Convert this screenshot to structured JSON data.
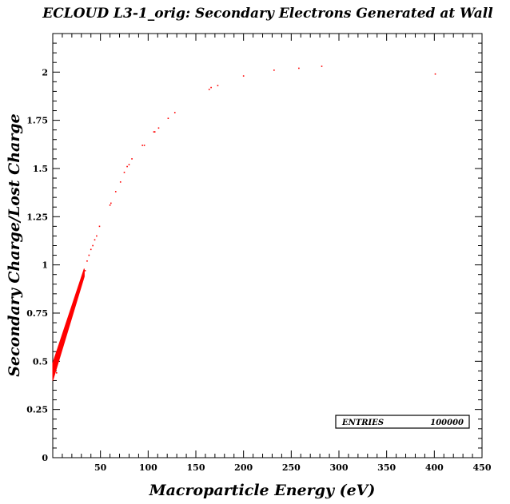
{
  "chart_data": {
    "type": "scatter",
    "title": "ECLOUD L3-1_orig: Secondary Electrons Generated at Wall",
    "xlabel": "Macroparticle Energy (eV)",
    "ylabel": "Secondary Charge/Lost Charge",
    "xlim": [
      0,
      450
    ],
    "ylim": [
      0,
      2.2
    ],
    "x_ticks": [
      50,
      100,
      150,
      200,
      250,
      300,
      350,
      400,
      450
    ],
    "x_tick_labels": [
      "50",
      "100",
      "150",
      "200",
      "250",
      "300",
      "350",
      "400",
      "450"
    ],
    "y_ticks": [
      0,
      0.25,
      0.5,
      0.75,
      1,
      1.25,
      1.5,
      1.75,
      2
    ],
    "y_tick_labels": [
      "0",
      "0.25",
      "0.5",
      "0.75",
      "1",
      "1.25",
      "1.5",
      "1.75",
      "2"
    ],
    "grid": false,
    "marker_color": "#ff0000",
    "dense_band": {
      "x_range": [
        0,
        33
      ],
      "y_start": [
        0.4,
        0.49
      ],
      "y_end": [
        0.94,
        0.98
      ]
    },
    "series": [
      {
        "points": [
          [
            1,
            0.44
          ],
          [
            4,
            0.44
          ],
          [
            34,
            0.97
          ],
          [
            36,
            1.02
          ],
          [
            38,
            1.05
          ],
          [
            40,
            1.08
          ],
          [
            42,
            1.1
          ],
          [
            44,
            1.13
          ],
          [
            46,
            1.15
          ],
          [
            49,
            1.2
          ],
          [
            60,
            1.31
          ],
          [
            61,
            1.32
          ],
          [
            66,
            1.38
          ],
          [
            71,
            1.43
          ],
          [
            75,
            1.48
          ],
          [
            78,
            1.51
          ],
          [
            80,
            1.52
          ],
          [
            83,
            1.55
          ],
          [
            94,
            1.62
          ],
          [
            96,
            1.62
          ],
          [
            106,
            1.69
          ],
          [
            107,
            1.69
          ],
          [
            111,
            1.71
          ],
          [
            121,
            1.76
          ],
          [
            128,
            1.79
          ],
          [
            164,
            1.91
          ],
          [
            166,
            1.92
          ],
          [
            173,
            1.93
          ],
          [
            200,
            1.98
          ],
          [
            232,
            2.01
          ],
          [
            258,
            2.02
          ],
          [
            282,
            2.03
          ],
          [
            401,
            1.99
          ]
        ]
      }
    ],
    "stats_box": {
      "label": "ENTRIES",
      "value": "100000"
    }
  }
}
